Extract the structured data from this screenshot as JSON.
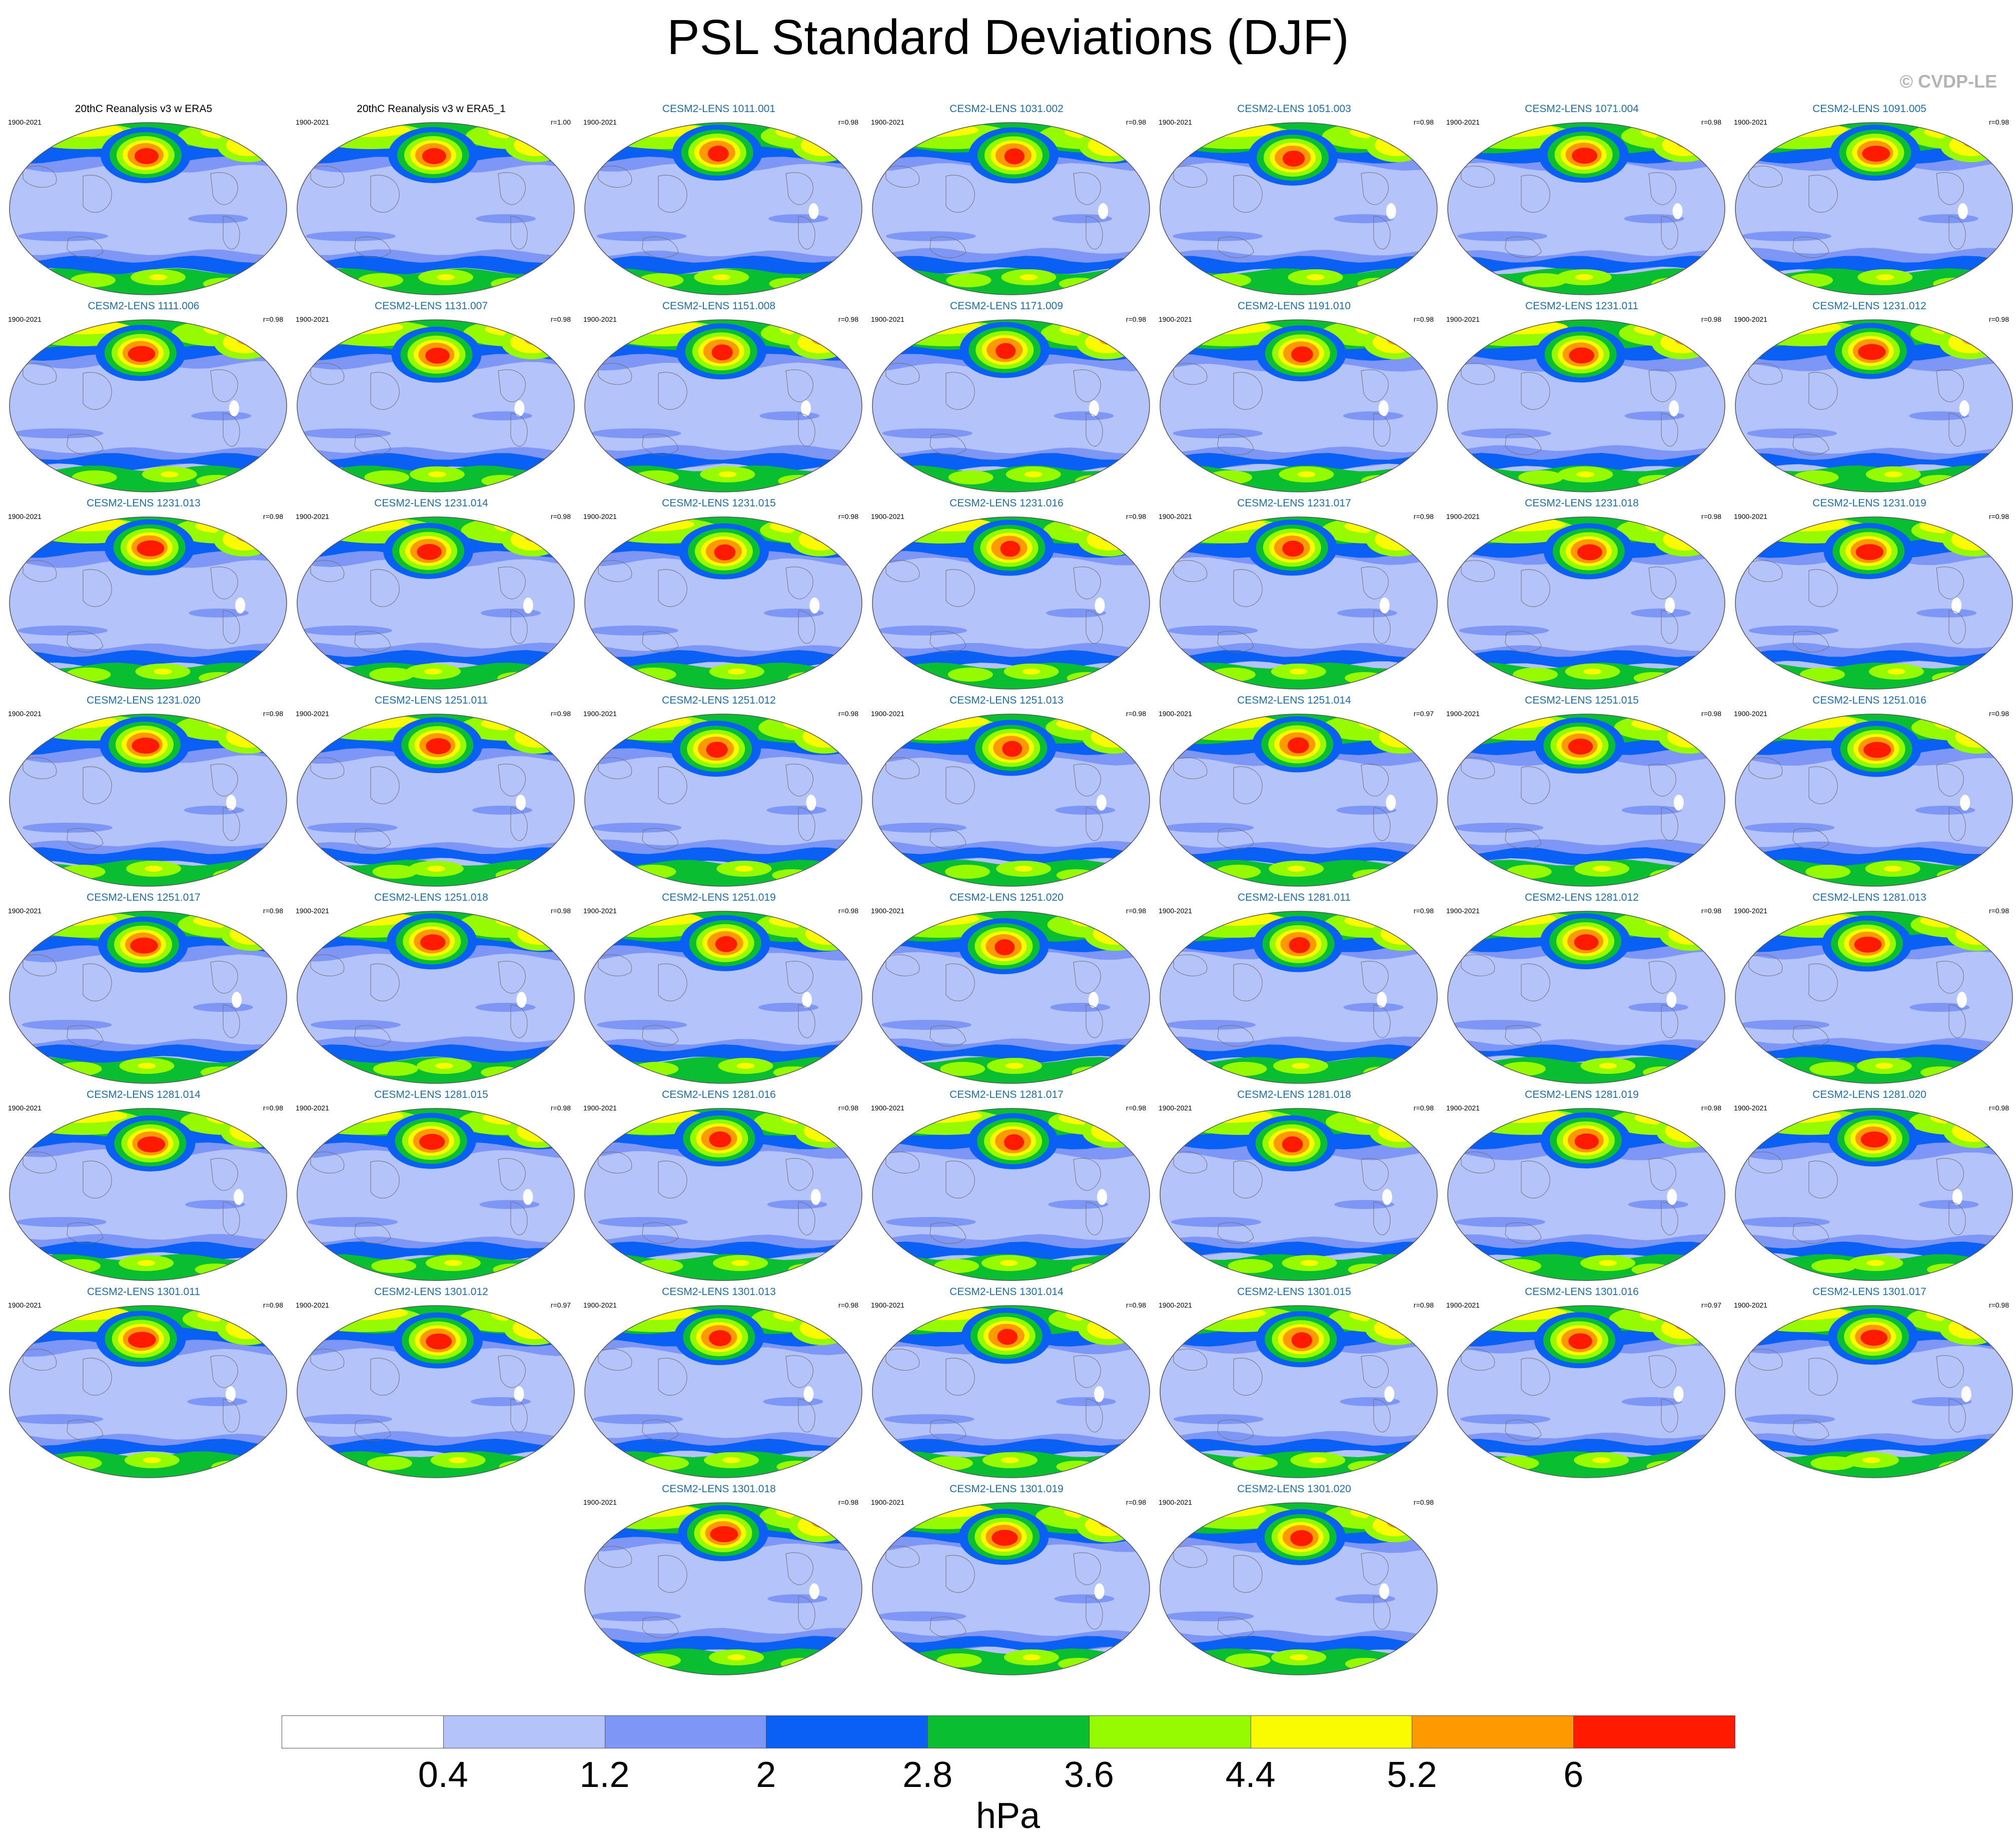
{
  "title": "PSL Standard Deviations (DJF)",
  "credit": "© CVDP-LE",
  "period": "1900-2021",
  "panels": [
    {
      "name": "20thC Reanalysis v3 w ERA5",
      "r": "",
      "obs": true,
      "v": 0
    },
    {
      "name": "20thC Reanalysis v3 w ERA5_1",
      "r": "r=1.00",
      "obs": true,
      "v": 0
    },
    {
      "name": "CESM2-LENS 1011.001",
      "r": "r=0.98",
      "v": 1
    },
    {
      "name": "CESM2-LENS 1031.002",
      "r": "r=0.98",
      "v": 2
    },
    {
      "name": "CESM2-LENS 1051.003",
      "r": "r=0.98",
      "v": 3
    },
    {
      "name": "CESM2-LENS 1071.004",
      "r": "r=0.98",
      "v": 4
    },
    {
      "name": "CESM2-LENS 1091.005",
      "r": "r=0.98",
      "v": 5
    },
    {
      "name": "CESM2-LENS 1111.006",
      "r": "r=0.98",
      "v": 6
    },
    {
      "name": "CESM2-LENS 1131.007",
      "r": "r=0.98",
      "v": 7
    },
    {
      "name": "CESM2-LENS 1151.008",
      "r": "r=0.98",
      "v": 8
    },
    {
      "name": "CESM2-LENS 1171.009",
      "r": "r=0.98",
      "v": 9
    },
    {
      "name": "CESM2-LENS 1191.010",
      "r": "r=0.98",
      "v": 10
    },
    {
      "name": "CESM2-LENS 1231.011",
      "r": "r=0.98",
      "v": 11
    },
    {
      "name": "CESM2-LENS 1231.012",
      "r": "r=0.98",
      "v": 12
    },
    {
      "name": "CESM2-LENS 1231.013",
      "r": "r=0.98",
      "v": 13
    },
    {
      "name": "CESM2-LENS 1231.014",
      "r": "r=0.98",
      "v": 14
    },
    {
      "name": "CESM2-LENS 1231.015",
      "r": "r=0.98",
      "v": 15
    },
    {
      "name": "CESM2-LENS 1231.016",
      "r": "r=0.98",
      "v": 16
    },
    {
      "name": "CESM2-LENS 1231.017",
      "r": "r=0.98",
      "v": 17
    },
    {
      "name": "CESM2-LENS 1231.018",
      "r": "r=0.98",
      "v": 18
    },
    {
      "name": "CESM2-LENS 1231.019",
      "r": "r=0.98",
      "v": 19
    },
    {
      "name": "CESM2-LENS 1231.020",
      "r": "r=0.98",
      "v": 20
    },
    {
      "name": "CESM2-LENS 1251.011",
      "r": "r=0.98",
      "v": 21
    },
    {
      "name": "CESM2-LENS 1251.012",
      "r": "r=0.98",
      "v": 22
    },
    {
      "name": "CESM2-LENS 1251.013",
      "r": "r=0.98",
      "v": 23
    },
    {
      "name": "CESM2-LENS 1251.014",
      "r": "r=0.97",
      "v": 24
    },
    {
      "name": "CESM2-LENS 1251.015",
      "r": "r=0.98",
      "v": 25
    },
    {
      "name": "CESM2-LENS 1251.016",
      "r": "r=0.98",
      "v": 26
    },
    {
      "name": "CESM2-LENS 1251.017",
      "r": "r=0.98",
      "v": 27
    },
    {
      "name": "CESM2-LENS 1251.018",
      "r": "r=0.98",
      "v": 28
    },
    {
      "name": "CESM2-LENS 1251.019",
      "r": "r=0.98",
      "v": 29
    },
    {
      "name": "CESM2-LENS 1251.020",
      "r": "r=0.98",
      "v": 30
    },
    {
      "name": "CESM2-LENS 1281.011",
      "r": "r=0.98",
      "v": 31
    },
    {
      "name": "CESM2-LENS 1281.012",
      "r": "r=0.98",
      "v": 32
    },
    {
      "name": "CESM2-LENS 1281.013",
      "r": "r=0.98",
      "v": 33
    },
    {
      "name": "CESM2-LENS 1281.014",
      "r": "r=0.98",
      "v": 34
    },
    {
      "name": "CESM2-LENS 1281.015",
      "r": "r=0.98",
      "v": 35
    },
    {
      "name": "CESM2-LENS 1281.016",
      "r": "r=0.98",
      "v": 36
    },
    {
      "name": "CESM2-LENS 1281.017",
      "r": "r=0.98",
      "v": 37
    },
    {
      "name": "CESM2-LENS 1281.018",
      "r": "r=0.98",
      "v": 38
    },
    {
      "name": "CESM2-LENS 1281.019",
      "r": "r=0.98",
      "v": 39
    },
    {
      "name": "CESM2-LENS 1281.020",
      "r": "r=0.98",
      "v": 40
    },
    {
      "name": "CESM2-LENS 1301.011",
      "r": "r=0.98",
      "v": 41
    },
    {
      "name": "CESM2-LENS 1301.012",
      "r": "r=0.97",
      "v": 42
    },
    {
      "name": "CESM2-LENS 1301.013",
      "r": "r=0.98",
      "v": 43
    },
    {
      "name": "CESM2-LENS 1301.014",
      "r": "r=0.98",
      "v": 44
    },
    {
      "name": "CESM2-LENS 1301.015",
      "r": "r=0.98",
      "v": 45
    },
    {
      "name": "CESM2-LENS 1301.016",
      "r": "r=0.97",
      "v": 46
    },
    {
      "name": "CESM2-LENS 1301.017",
      "r": "r=0.98",
      "v": 47
    },
    {
      "name": "CESM2-LENS 1301.018",
      "r": "r=0.98",
      "v": 48
    },
    {
      "name": "CESM2-LENS 1301.019",
      "r": "r=0.98",
      "v": 49
    },
    {
      "name": "CESM2-LENS 1301.020",
      "r": "r=0.98",
      "v": 50
    }
  ],
  "colorbar": {
    "colors": [
      "#ffffff",
      "#b4c3fa",
      "#7e96f5",
      "#0a5ff5",
      "#0abe32",
      "#96fa00",
      "#fafa00",
      "#ff9900",
      "#ff1a00"
    ],
    "labels": [
      "0.4",
      "1.2",
      "2",
      "2.8",
      "3.6",
      "4.4",
      "5.2",
      "6"
    ],
    "units": "hPa"
  }
}
